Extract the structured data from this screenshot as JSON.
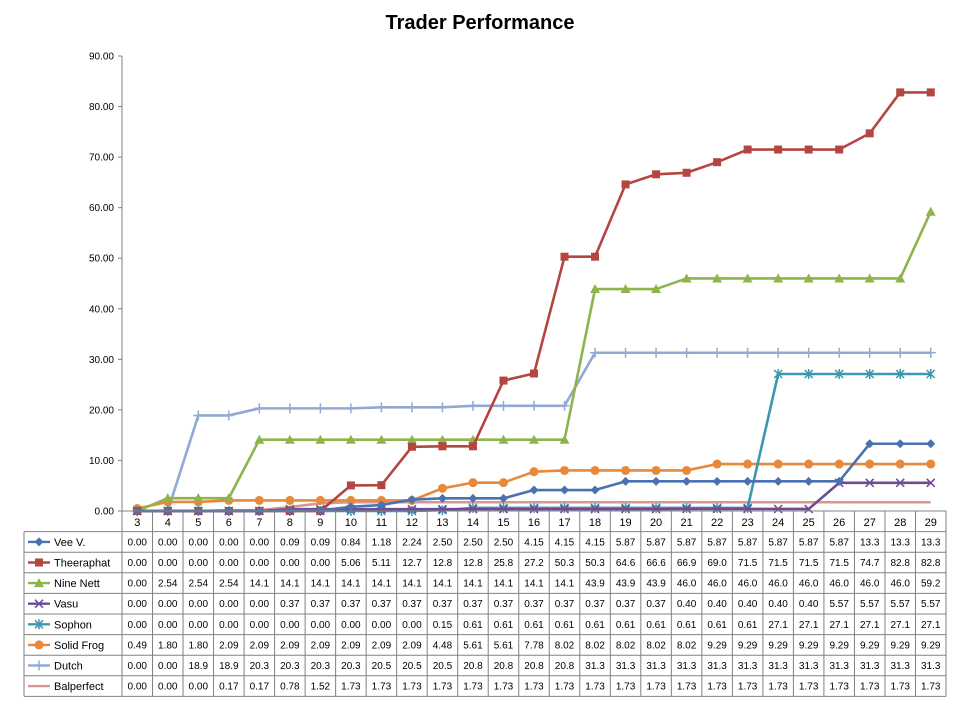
{
  "chart_data": {
    "type": "line",
    "title": "Trader Performance",
    "xlabel": "",
    "ylabel": "",
    "ylim": [
      0,
      90
    ],
    "yticks": [
      "0.00",
      "10.00",
      "20.00",
      "30.00",
      "40.00",
      "50.00",
      "60.00",
      "70.00",
      "80.00",
      "90.00"
    ],
    "grid": false,
    "legend": "data-table",
    "categories": [
      "3",
      "4",
      "5",
      "6",
      "7",
      "8",
      "9",
      "10",
      "11",
      "12",
      "13",
      "14",
      "15",
      "16",
      "17",
      "18",
      "19",
      "20",
      "21",
      "22",
      "23",
      "24",
      "25",
      "26",
      "27",
      "28",
      "29"
    ],
    "series": [
      {
        "name": "Vee V.",
        "color": "#4a72b0",
        "marker": "diamond",
        "labels": [
          "0.00",
          "0.00",
          "0.00",
          "0.00",
          "0.00",
          "0.09",
          "0.09",
          "0.84",
          "1.18",
          "2.24",
          "2.50",
          "2.50",
          "2.50",
          "4.15",
          "4.15",
          "4.15",
          "5.87",
          "5.87",
          "5.87",
          "5.87",
          "5.87",
          "5.87",
          "5.87",
          "5.87",
          "13.3",
          "13.3",
          "13.3"
        ],
        "values": [
          0,
          0,
          0,
          0,
          0,
          0.09,
          0.09,
          0.84,
          1.18,
          2.24,
          2.5,
          2.5,
          2.5,
          4.15,
          4.15,
          4.15,
          5.87,
          5.87,
          5.87,
          5.87,
          5.87,
          5.87,
          5.87,
          5.87,
          13.3,
          13.3,
          13.3
        ]
      },
      {
        "name": "Theeraphat",
        "color": "#b54541",
        "marker": "square",
        "labels": [
          "0.00",
          "0.00",
          "0.00",
          "0.00",
          "0.00",
          "0.00",
          "0.00",
          "5.06",
          "5.11",
          "12.7",
          "12.8",
          "12.8",
          "25.8",
          "27.2",
          "50.3",
          "50.3",
          "64.6",
          "66.6",
          "66.9",
          "69.0",
          "71.5",
          "71.5",
          "71.5",
          "71.5",
          "74.7",
          "82.8",
          "82.8"
        ],
        "values": [
          0,
          0,
          0,
          0,
          0,
          0,
          0,
          5.06,
          5.11,
          12.7,
          12.8,
          12.8,
          25.8,
          27.2,
          50.3,
          50.3,
          64.6,
          66.6,
          66.9,
          69.0,
          71.5,
          71.5,
          71.5,
          71.5,
          74.7,
          82.8,
          82.8
        ]
      },
      {
        "name": "Nine Nett",
        "color": "#8eb44c",
        "marker": "triangle",
        "labels": [
          "0.00",
          "2.54",
          "2.54",
          "2.54",
          "14.1",
          "14.1",
          "14.1",
          "14.1",
          "14.1",
          "14.1",
          "14.1",
          "14.1",
          "14.1",
          "14.1",
          "14.1",
          "43.9",
          "43.9",
          "43.9",
          "46.0",
          "46.0",
          "46.0",
          "46.0",
          "46.0",
          "46.0",
          "46.0",
          "46.0",
          "59.2"
        ],
        "values": [
          0,
          2.54,
          2.54,
          2.54,
          14.1,
          14.1,
          14.1,
          14.1,
          14.1,
          14.1,
          14.1,
          14.1,
          14.1,
          14.1,
          14.1,
          43.9,
          43.9,
          43.9,
          46.0,
          46.0,
          46.0,
          46.0,
          46.0,
          46.0,
          46.0,
          46.0,
          59.2
        ]
      },
      {
        "name": "Vasu",
        "color": "#6e4b95",
        "marker": "x",
        "labels": [
          "0.00",
          "0.00",
          "0.00",
          "0.00",
          "0.00",
          "0.37",
          "0.37",
          "0.37",
          "0.37",
          "0.37",
          "0.37",
          "0.37",
          "0.37",
          "0.37",
          "0.37",
          "0.37",
          "0.37",
          "0.37",
          "0.40",
          "0.40",
          "0.40",
          "0.40",
          "0.40",
          "5.57",
          "5.57",
          "5.57",
          "5.57"
        ],
        "values": [
          0,
          0,
          0,
          0,
          0,
          0.37,
          0.37,
          0.37,
          0.37,
          0.37,
          0.37,
          0.37,
          0.37,
          0.37,
          0.37,
          0.37,
          0.37,
          0.37,
          0.4,
          0.4,
          0.4,
          0.4,
          0.4,
          5.57,
          5.57,
          5.57,
          5.57
        ]
      },
      {
        "name": "Sophon",
        "color": "#3d97ad",
        "marker": "star",
        "labels": [
          "0.00",
          "0.00",
          "0.00",
          "0.00",
          "0.00",
          "0.00",
          "0.00",
          "0.00",
          "0.00",
          "0.00",
          "0.15",
          "0.61",
          "0.61",
          "0.61",
          "0.61",
          "0.61",
          "0.61",
          "0.61",
          "0.61",
          "0.61",
          "0.61",
          "27.1",
          "27.1",
          "27.1",
          "27.1",
          "27.1",
          "27.1"
        ],
        "values": [
          0,
          0,
          0,
          0,
          0,
          0,
          0,
          0,
          0,
          0,
          0.15,
          0.61,
          0.61,
          0.61,
          0.61,
          0.61,
          0.61,
          0.61,
          0.61,
          0.61,
          0.61,
          27.1,
          27.1,
          27.1,
          27.1,
          27.1,
          27.1
        ]
      },
      {
        "name": "Solid Frog",
        "color": "#e8883a",
        "marker": "circle",
        "labels": [
          "0.49",
          "1.80",
          "1.80",
          "2.09",
          "2.09",
          "2.09",
          "2.09",
          "2.09",
          "2.09",
          "2.09",
          "4.48",
          "5.61",
          "5.61",
          "7.78",
          "8.02",
          "8.02",
          "8.02",
          "8.02",
          "8.02",
          "9.29",
          "9.29",
          "9.29",
          "9.29",
          "9.29",
          "9.29",
          "9.29",
          "9.29"
        ],
        "values": [
          0.49,
          1.8,
          1.8,
          2.09,
          2.09,
          2.09,
          2.09,
          2.09,
          2.09,
          2.09,
          4.48,
          5.61,
          5.61,
          7.78,
          8.02,
          8.02,
          8.02,
          8.02,
          8.02,
          9.29,
          9.29,
          9.29,
          9.29,
          9.29,
          9.29,
          9.29,
          9.29
        ]
      },
      {
        "name": "Dutch",
        "color": "#92a9d4",
        "marker": "plus",
        "labels": [
          "0.00",
          "0.00",
          "18.9",
          "18.9",
          "20.3",
          "20.3",
          "20.3",
          "20.3",
          "20.5",
          "20.5",
          "20.5",
          "20.8",
          "20.8",
          "20.8",
          "20.8",
          "31.3",
          "31.3",
          "31.3",
          "31.3",
          "31.3",
          "31.3",
          "31.3",
          "31.3",
          "31.3",
          "31.3",
          "31.3",
          "31.3"
        ],
        "values": [
          0,
          0,
          18.9,
          18.9,
          20.3,
          20.3,
          20.3,
          20.3,
          20.5,
          20.5,
          20.5,
          20.8,
          20.8,
          20.8,
          20.8,
          31.3,
          31.3,
          31.3,
          31.3,
          31.3,
          31.3,
          31.3,
          31.3,
          31.3,
          31.3,
          31.3,
          31.3
        ]
      },
      {
        "name": "Balperfect",
        "color": "#d99694",
        "marker": "none",
        "labels": [
          "0.00",
          "0.00",
          "0.00",
          "0.17",
          "0.17",
          "0.78",
          "1.52",
          "1.73",
          "1.73",
          "1.73",
          "1.73",
          "1.73",
          "1.73",
          "1.73",
          "1.73",
          "1.73",
          "1.73",
          "1.73",
          "1.73",
          "1.73",
          "1.73",
          "1.73",
          "1.73",
          "1.73",
          "1.73",
          "1.73",
          "1.73"
        ],
        "values": [
          0,
          0,
          0,
          0.17,
          0.17,
          0.78,
          1.52,
          1.73,
          1.73,
          1.73,
          1.73,
          1.73,
          1.73,
          1.73,
          1.73,
          1.73,
          1.73,
          1.73,
          1.73,
          1.73,
          1.73,
          1.73,
          1.73,
          1.73,
          1.73,
          1.73,
          1.73
        ]
      }
    ]
  }
}
